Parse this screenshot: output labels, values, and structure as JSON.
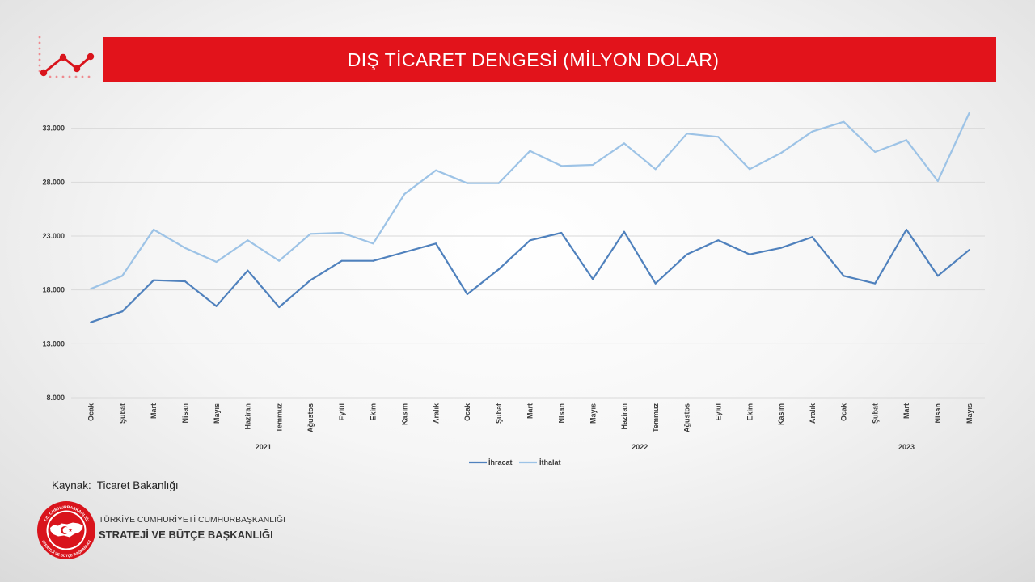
{
  "chart_data": {
    "type": "line",
    "title": "DIŞ TİCARET DENGESİ (MİLYON DOLAR)",
    "category_groups": [
      {
        "label": "2021",
        "categories": [
          "Ocak",
          "Şubat",
          "Mart",
          "Nisan",
          "Mayıs",
          "Haziran",
          "Temmuz",
          "Ağustos",
          "Eylül",
          "Ekim",
          "Kasım",
          "Aralık"
        ]
      },
      {
        "label": "2022",
        "categories": [
          "Ocak",
          "Şubat",
          "Mart",
          "Nisan",
          "Mayıs",
          "Haziran",
          "Temmuz",
          "Ağustos",
          "Eylül",
          "Ekim",
          "Kasım",
          "Aralık"
        ]
      },
      {
        "label": "2023",
        "categories": [
          "Ocak",
          "Şubat",
          "Mart",
          "Nisan",
          "Mayıs"
        ]
      }
    ],
    "series": [
      {
        "name": "İhracat",
        "color": "#4f81bd",
        "values": [
          15000,
          16000,
          18900,
          18800,
          16500,
          19800,
          16400,
          18900,
          20700,
          20700,
          21500,
          22300,
          17600,
          19900,
          22600,
          23300,
          19000,
          23400,
          18600,
          21300,
          22600,
          21300,
          21900,
          22900,
          19300,
          18600,
          23600,
          19300,
          21700
        ]
      },
      {
        "name": "İthalat",
        "color": "#9dc3e6",
        "values": [
          18100,
          19300,
          23600,
          21900,
          20600,
          22600,
          20700,
          23200,
          23300,
          22300,
          26900,
          29100,
          27900,
          27900,
          30900,
          29500,
          29600,
          31600,
          29200,
          32500,
          32200,
          29200,
          30700,
          32700,
          33600,
          30800,
          31900,
          28100,
          34400
        ]
      }
    ],
    "ylim": [
      8000,
      35000
    ],
    "yticks": [
      8000,
      13000,
      18000,
      23000,
      28000,
      33000
    ],
    "ytick_labels": [
      "8.000",
      "13.000",
      "18.000",
      "23.000",
      "28.000",
      "33.000"
    ],
    "grid": true,
    "legend": "bottom"
  },
  "source": {
    "label": "Kaynak:",
    "value": "Ticaret Bakanlığı"
  },
  "logo": {
    "seal_top": "T.C. CUMHURBAŞKANLIĞI",
    "seal_bottom": "STRATEJİ VE BÜTÇE BAŞKANLIĞI",
    "line1": "TÜRKİYE CUMHURİYETİ CUMHURBAŞKANLIĞI",
    "line2": "STRATEJİ VE BÜTÇE BAŞKANLIĞI"
  },
  "colors": {
    "banner": "#e2131b",
    "grid": "#d9d9d9",
    "icon_red": "#d9141c"
  }
}
